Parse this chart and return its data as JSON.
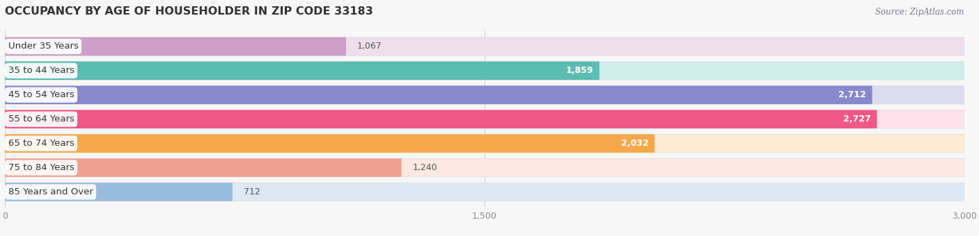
{
  "title": "OCCUPANCY BY AGE OF HOUSEHOLDER IN ZIP CODE 33183",
  "source": "Source: ZipAtlas.com",
  "categories": [
    "Under 35 Years",
    "35 to 44 Years",
    "45 to 54 Years",
    "55 to 64 Years",
    "65 to 74 Years",
    "75 to 84 Years",
    "85 Years and Over"
  ],
  "values": [
    1067,
    1859,
    2712,
    2727,
    2032,
    1240,
    712
  ],
  "bar_colors": [
    "#cc9ec8",
    "#5bbcb2",
    "#8888cc",
    "#f05888",
    "#f5a84a",
    "#f0a090",
    "#9abcdc"
  ],
  "bar_bg_colors": [
    "#ede0eb",
    "#cdecea",
    "#dcdcf0",
    "#fce0ea",
    "#fdebd4",
    "#fde8e4",
    "#dce8f4"
  ],
  "xlim": [
    0,
    3000
  ],
  "xticks": [
    0,
    1500,
    3000
  ],
  "background_color": "#f7f7f7",
  "title_fontsize": 11.5,
  "source_fontsize": 8.5,
  "label_fontsize": 9.5,
  "value_fontsize": 9
}
